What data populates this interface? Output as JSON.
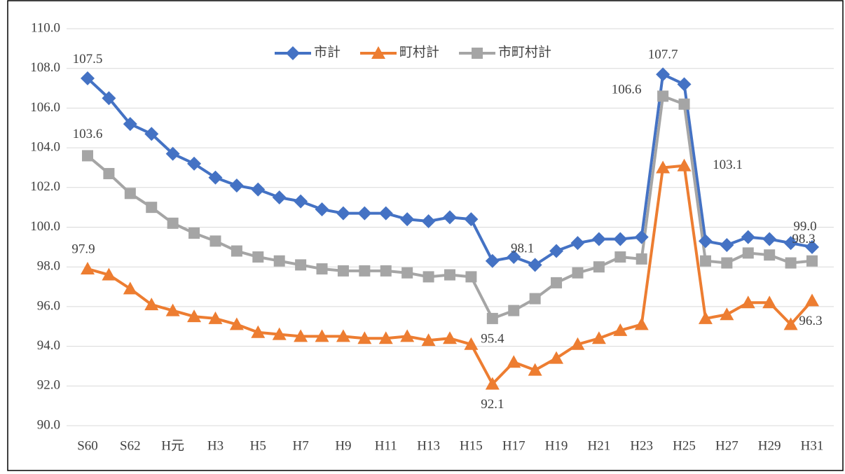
{
  "chart_data": {
    "type": "line",
    "categories": [
      "S60",
      null,
      "S62",
      null,
      "H元",
      null,
      "H3",
      null,
      "H5",
      null,
      "H7",
      null,
      "H9",
      null,
      "H11",
      null,
      "H13",
      null,
      "H15",
      null,
      "H17",
      null,
      "H19",
      null,
      "H21",
      null,
      "H23",
      null,
      "H25",
      null,
      "H27",
      null,
      "H29",
      null,
      "H31"
    ],
    "ylim": [
      90,
      110
    ],
    "yticks": [
      {
        "value": 90,
        "label": "90.0"
      },
      {
        "value": 92,
        "label": "92.0"
      },
      {
        "value": 94,
        "label": "94.0"
      },
      {
        "value": 96,
        "label": "96.0"
      },
      {
        "value": 98,
        "label": "98.0"
      },
      {
        "value": 100,
        "label": "100.0"
      },
      {
        "value": 102,
        "label": "102.0"
      },
      {
        "value": 104,
        "label": "104.0"
      },
      {
        "value": 106,
        "label": "106.0"
      },
      {
        "value": 108,
        "label": "108.0"
      },
      {
        "value": 110,
        "label": "110.0"
      }
    ],
    "grid": true,
    "legend": "top",
    "series": [
      {
        "name": "市計",
        "color": "#4472c4",
        "marker": "diamond",
        "values": [
          107.5,
          106.5,
          105.2,
          104.7,
          103.7,
          103.2,
          102.5,
          102.1,
          101.9,
          101.5,
          101.3,
          100.9,
          100.7,
          100.7,
          100.7,
          100.4,
          100.3,
          100.5,
          100.4,
          98.3,
          98.5,
          98.1,
          98.8,
          99.2,
          99.4,
          99.4,
          99.5,
          107.7,
          107.2,
          99.3,
          99.1,
          99.5,
          99.4,
          99.2,
          99.0
        ],
        "value_labels": [
          "107.5",
          null,
          null,
          null,
          null,
          null,
          null,
          null,
          null,
          null,
          null,
          null,
          null,
          null,
          null,
          null,
          null,
          null,
          null,
          null,
          null,
          "98.1",
          null,
          null,
          null,
          null,
          null,
          "107.7",
          null,
          null,
          null,
          null,
          null,
          null,
          "99.0"
        ]
      },
      {
        "name": "町村計",
        "color": "#ed7d31",
        "marker": "triangle",
        "values": [
          97.9,
          97.6,
          96.9,
          96.1,
          95.8,
          95.5,
          95.4,
          95.1,
          94.7,
          94.6,
          94.5,
          94.5,
          94.5,
          94.4,
          94.4,
          94.5,
          94.3,
          94.4,
          94.1,
          92.1,
          93.2,
          92.8,
          93.4,
          94.1,
          94.4,
          94.8,
          95.1,
          103.0,
          103.1,
          95.4,
          95.6,
          96.2,
          96.2,
          95.1,
          96.3
        ],
        "value_labels": [
          "97.9",
          null,
          null,
          null,
          null,
          null,
          null,
          null,
          null,
          null,
          null,
          null,
          null,
          null,
          null,
          null,
          null,
          null,
          null,
          "92.1",
          null,
          null,
          null,
          null,
          null,
          null,
          null,
          null,
          "103.1",
          null,
          null,
          null,
          null,
          null,
          "96.3"
        ]
      },
      {
        "name": "市町村計",
        "color": "#a5a5a5",
        "marker": "square",
        "values": [
          103.6,
          102.7,
          101.7,
          101.0,
          100.2,
          99.7,
          99.3,
          98.8,
          98.5,
          98.3,
          98.1,
          97.9,
          97.8,
          97.8,
          97.8,
          97.7,
          97.5,
          97.6,
          97.5,
          95.4,
          95.8,
          96.4,
          97.2,
          97.7,
          98.0,
          98.5,
          98.4,
          106.6,
          106.2,
          98.3,
          98.2,
          98.7,
          98.6,
          98.2,
          98.3
        ],
        "value_labels": [
          "103.6",
          null,
          null,
          null,
          null,
          null,
          null,
          null,
          null,
          null,
          null,
          null,
          null,
          null,
          null,
          null,
          null,
          null,
          null,
          "95.4",
          null,
          null,
          null,
          null,
          null,
          null,
          null,
          "106.6",
          null,
          null,
          null,
          null,
          null,
          null,
          "98.3"
        ]
      }
    ]
  }
}
